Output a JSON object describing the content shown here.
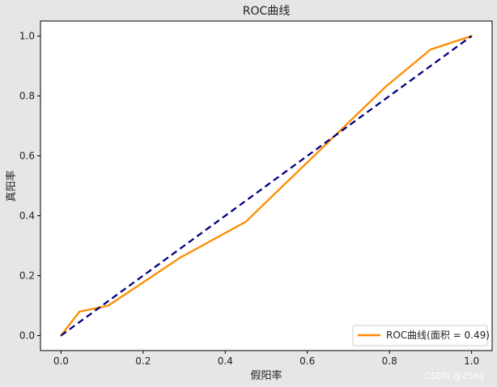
{
  "chart_data": {
    "type": "line",
    "title": "ROC曲线",
    "xlabel": "假阳率",
    "ylabel": "真阳率",
    "xlim": [
      -0.05,
      1.05
    ],
    "ylim": [
      -0.05,
      1.05
    ],
    "xticks": [
      0.0,
      0.2,
      0.4,
      0.6,
      0.8,
      1.0
    ],
    "yticks": [
      0.0,
      0.2,
      0.4,
      0.6,
      0.8,
      1.0
    ],
    "xtick_labels": [
      "0.0",
      "0.2",
      "0.4",
      "0.6",
      "0.8",
      "1.0"
    ],
    "ytick_labels": [
      "0.0",
      "0.2",
      "0.4",
      "0.6",
      "0.8",
      "1.0"
    ],
    "grid": false,
    "legend_position": "lower-right",
    "series": [
      {
        "name": "ROC曲线(面积 = 0.49)",
        "color": "#ff8c00",
        "style": "solid",
        "x": [
          0.0,
          0.045,
          0.115,
          0.29,
          0.45,
          0.79,
          0.9,
          1.0
        ],
        "y": [
          0.0,
          0.08,
          0.1,
          0.26,
          0.38,
          0.83,
          0.955,
          1.0
        ]
      },
      {
        "color": "#000080",
        "style": "dashed",
        "x": [
          0.0,
          1.0
        ],
        "y": [
          0.0,
          1.0
        ]
      }
    ]
  },
  "watermark": "CSDN @ZShiJ"
}
